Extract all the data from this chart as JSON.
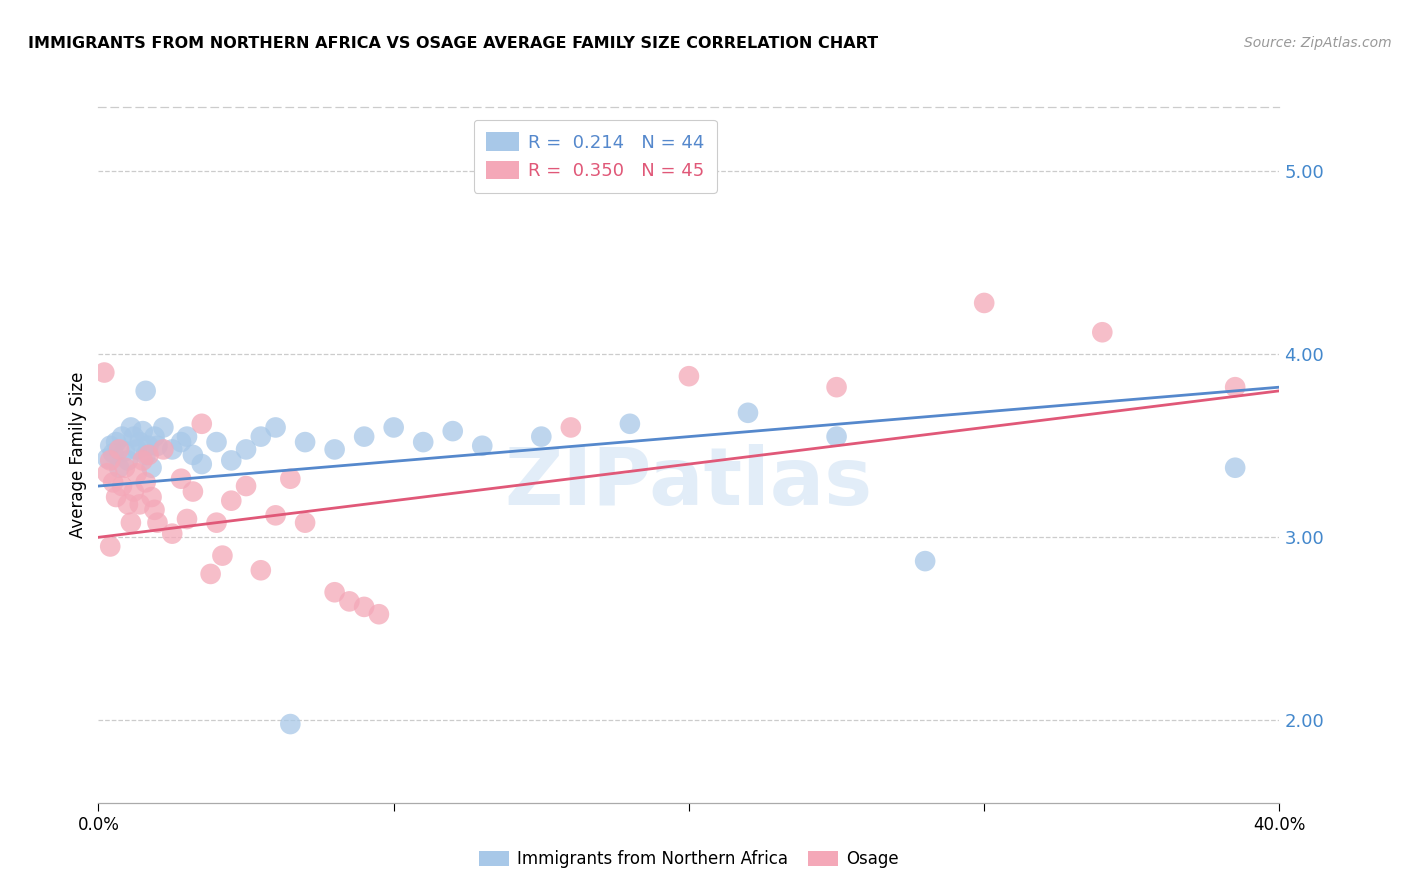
{
  "title": "IMMIGRANTS FROM NORTHERN AFRICA VS OSAGE AVERAGE FAMILY SIZE CORRELATION CHART",
  "source": "Source: ZipAtlas.com",
  "ylabel": "Average Family Size",
  "yticks": [
    2.0,
    3.0,
    4.0,
    5.0
  ],
  "xlim": [
    0.0,
    0.4
  ],
  "ylim": [
    1.55,
    5.35
  ],
  "legend_r_blue": "0.214",
  "legend_n_blue": "44",
  "legend_r_pink": "0.350",
  "legend_n_pink": "45",
  "watermark": "ZIPatlas",
  "blue_color": "#a8c8e8",
  "pink_color": "#f4a8b8",
  "blue_line_color": "#5588cc",
  "pink_line_color": "#e05878",
  "blue_scatter": [
    [
      0.003,
      3.43
    ],
    [
      0.004,
      3.5
    ],
    [
      0.005,
      3.46
    ],
    [
      0.006,
      3.52
    ],
    [
      0.007,
      3.38
    ],
    [
      0.008,
      3.55
    ],
    [
      0.009,
      3.47
    ],
    [
      0.01,
      3.42
    ],
    [
      0.011,
      3.6
    ],
    [
      0.012,
      3.55
    ],
    [
      0.013,
      3.48
    ],
    [
      0.014,
      3.52
    ],
    [
      0.015,
      3.58
    ],
    [
      0.016,
      3.45
    ],
    [
      0.017,
      3.5
    ],
    [
      0.018,
      3.38
    ],
    [
      0.019,
      3.55
    ],
    [
      0.02,
      3.5
    ],
    [
      0.022,
      3.6
    ],
    [
      0.025,
      3.48
    ],
    [
      0.028,
      3.52
    ],
    [
      0.03,
      3.55
    ],
    [
      0.032,
      3.45
    ],
    [
      0.035,
      3.4
    ],
    [
      0.04,
      3.52
    ],
    [
      0.045,
      3.42
    ],
    [
      0.05,
      3.48
    ],
    [
      0.055,
      3.55
    ],
    [
      0.06,
      3.6
    ],
    [
      0.07,
      3.52
    ],
    [
      0.08,
      3.48
    ],
    [
      0.09,
      3.55
    ],
    [
      0.1,
      3.6
    ],
    [
      0.11,
      3.52
    ],
    [
      0.12,
      3.58
    ],
    [
      0.13,
      3.5
    ],
    [
      0.15,
      3.55
    ],
    [
      0.18,
      3.62
    ],
    [
      0.22,
      3.68
    ],
    [
      0.25,
      3.55
    ],
    [
      0.28,
      2.87
    ],
    [
      0.065,
      1.98
    ],
    [
      0.385,
      3.38
    ],
    [
      0.016,
      3.8
    ]
  ],
  "pink_scatter": [
    [
      0.002,
      3.9
    ],
    [
      0.003,
      3.35
    ],
    [
      0.004,
      3.42
    ],
    [
      0.005,
      3.3
    ],
    [
      0.006,
      3.22
    ],
    [
      0.007,
      3.48
    ],
    [
      0.008,
      3.28
    ],
    [
      0.009,
      3.38
    ],
    [
      0.01,
      3.18
    ],
    [
      0.011,
      3.08
    ],
    [
      0.012,
      3.25
    ],
    [
      0.013,
      3.35
    ],
    [
      0.014,
      3.18
    ],
    [
      0.015,
      3.42
    ],
    [
      0.016,
      3.3
    ],
    [
      0.017,
      3.45
    ],
    [
      0.018,
      3.22
    ],
    [
      0.019,
      3.15
    ],
    [
      0.02,
      3.08
    ],
    [
      0.022,
      3.48
    ],
    [
      0.025,
      3.02
    ],
    [
      0.028,
      3.32
    ],
    [
      0.03,
      3.1
    ],
    [
      0.032,
      3.25
    ],
    [
      0.035,
      3.62
    ],
    [
      0.038,
      2.8
    ],
    [
      0.04,
      3.08
    ],
    [
      0.042,
      2.9
    ],
    [
      0.045,
      3.2
    ],
    [
      0.05,
      3.28
    ],
    [
      0.055,
      2.82
    ],
    [
      0.06,
      3.12
    ],
    [
      0.065,
      3.32
    ],
    [
      0.07,
      3.08
    ],
    [
      0.08,
      2.7
    ],
    [
      0.085,
      2.65
    ],
    [
      0.09,
      2.62
    ],
    [
      0.095,
      2.58
    ],
    [
      0.16,
      3.6
    ],
    [
      0.2,
      3.88
    ],
    [
      0.25,
      3.82
    ],
    [
      0.3,
      4.28
    ],
    [
      0.34,
      4.12
    ],
    [
      0.385,
      3.82
    ],
    [
      0.004,
      2.95
    ]
  ],
  "blue_line_x": [
    0.0,
    0.4
  ],
  "blue_line_y": [
    3.28,
    3.82
  ],
  "pink_line_x": [
    0.0,
    0.4
  ],
  "pink_line_y": [
    3.0,
    3.8
  ],
  "background_color": "#ffffff",
  "grid_color": "#cccccc"
}
